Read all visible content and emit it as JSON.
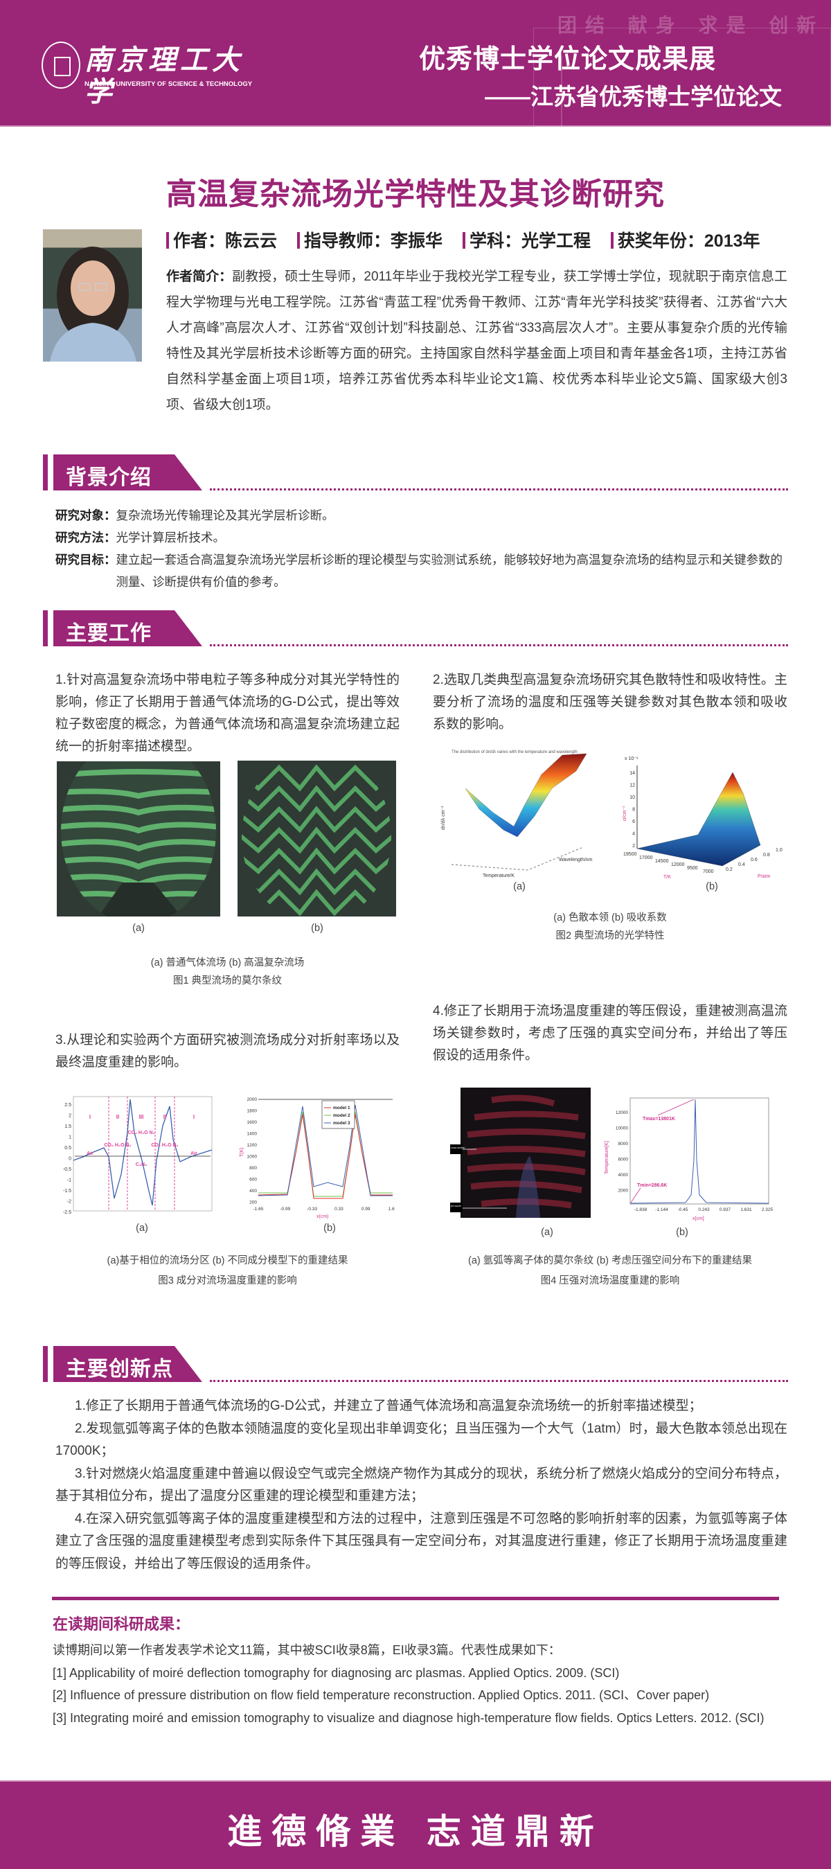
{
  "header": {
    "university_cn": "南京理工大学",
    "university_en": "NANJING UNIVERSITY OF SCIENCE & TECHNOLOGY",
    "motto_watermark": "团结 献身 求是 创新",
    "title": "优秀博士学位论文成果展",
    "subtitle": "——江苏省优秀博士学位论文"
  },
  "thesis_title": "高温复杂流场光学特性及其诊断研究",
  "author": {
    "author": "作者：陈云云",
    "advisor": "指导教师：李振华",
    "discipline": "学科：光学工程",
    "award_year": "获奖年份：2013年",
    "bio_label": "作者简介：",
    "bio": "副教授，硕士生导师，2011年毕业于我校光学工程专业，获工学博士学位，现就职于南京信息工程大学物理与光电工程学院。江苏省“青蓝工程”优秀骨干教师、江苏“青年光学科技奖”获得者、江苏省“六大人才高峰”高层次人才、江苏省“双创计划”科技副总、江苏省“333高层次人才”。主要从事复杂介质的光传输特性及其光学层析技术诊断等方面的研究。主持国家自然科学基金面上项目和青年基金各1项，主持江苏省自然科学基金面上项目1项，培养江苏省优秀本科毕业论文1篇、校优秀本科毕业论文5篇、国家级大创3项、省级大创1项。"
  },
  "background": {
    "heading": "背景介绍",
    "rows": [
      {
        "label": "研究对象：",
        "text": "复杂流场光传输理论及其光学层析诊断。"
      },
      {
        "label": "研究方法：",
        "text": "光学计算层析技术。"
      },
      {
        "label": "研究目标：",
        "text": "建立起一套适合高温复杂流场光学层析诊断的理论模型与实验测试系统，能够较好地为高温复杂流场的结构显示和关键参数的测量、诊断提供有价值的参考。"
      }
    ]
  },
  "main_work": {
    "heading": "主要工作",
    "items": [
      {
        "text": "1.针对高温复杂流场中带电粒子等多种成分对其光学特性的影响，修正了长期用于普通气体流场的G-D公式，提出等效粒子数密度的概念，为普通气体流场和高温复杂流场建立起统一的折射率描述模型。",
        "sub_a": "(a)",
        "sub_b": "(b)",
        "caption": "(a) 普通气体流场  (b) 高温复杂流场",
        "figure": "图1 典型流场的莫尔条纹"
      },
      {
        "text": "2.选取几类典型高温复杂流场研究其色散特性和吸收特性。主要分析了流场的温度和压强等关键参数对其色散本领和吸收系数的影响。",
        "sub_a": "(a)",
        "sub_b": "(b)",
        "caption": "(a) 色散本领  (b) 吸收系数",
        "figure": "图2 典型流场的光学特性",
        "plot_a_title": "The distribution of dn/dλ varies with the temperature and wavelength",
        "plot_a_xlabel": "Temperature/K",
        "plot_a_ylabel": "dn/dλ cm⁻¹",
        "plot_a_zlabel": "Wavelength/nm",
        "plot_b_xlabel": "T/K",
        "plot_b_ylabel": "α/cm⁻¹",
        "plot_b_zlabel": "P/atm",
        "plot_b_scale": "x 10⁻⁶",
        "plot_b_yticks": [
          "2",
          "4",
          "6",
          "8",
          "10",
          "12",
          "14"
        ],
        "plot_b_xticks": [
          "19500",
          "17000",
          "14500",
          "12000",
          "9500",
          "7000"
        ],
        "plot_b_pticks": [
          "0.2",
          "0.4",
          "0.6",
          "0.8",
          "1.0"
        ]
      },
      {
        "text": "3.从理论和实验两个方面研究被测流场成分对折射率场以及最终温度重建的影响。",
        "sub_a": "(a)",
        "sub_b": "(b)",
        "caption": "(a)基于相位的流场分区  (b) 不同成分模型下的重建结果",
        "figure": "图3 成分对流场温度重建的影响",
        "plot_a_yticks": [
          "2.5",
          "2",
          "1.5",
          "1",
          "0.5",
          "0",
          "-0.5",
          "-1",
          "-1.5",
          "-2",
          "-2.5"
        ],
        "plot_a_ylabel": "φ",
        "plot_a_regions": [
          "I",
          "II",
          "III",
          "II",
          "I"
        ],
        "plot_a_species": [
          "Air",
          "CO₂ H₂O N₂",
          "CO₂ H₂O N₂",
          "C₃H₈",
          "CO₂ H₂O N₂",
          "Air"
        ],
        "plot_b_yticks": [
          "2000",
          "1800",
          "1600",
          "1400",
          "1200",
          "1000",
          "800",
          "600",
          "400",
          "200"
        ],
        "plot_b_xticks": [
          "-1.65",
          "-0.99",
          "-0.33",
          "0.33",
          "0.99",
          "1.65"
        ],
        "plot_b_xlabel": "x(cm)",
        "plot_b_ylabel": "T(K)",
        "legend": [
          "model 1",
          "model 2",
          "model 3"
        ],
        "legend_colors": [
          "#e0302a",
          "#6cc24a",
          "#3a5fb0"
        ]
      },
      {
        "text": "4.修正了长期用于流场温度重建的等压假设，重建被测高温流场关键参数时，考虑了压强的真实空间分布，并给出了等压假设的适用条件。",
        "sub_a": "(a)",
        "sub_b": "(b)",
        "caption": "(a) 氩弧等离子体的莫尔条纹  (b) 考虑压强空间分布下的重建结果",
        "figure": "图4 压强对流场温度重建的影响",
        "plot_a_labels": [
          "cross section",
          "jet nozzle"
        ],
        "plot_b_yticks": [
          "12000",
          "10000",
          "8000",
          "6000",
          "4000",
          "2000"
        ],
        "plot_b_xticks": [
          "-1.838",
          "-1.144",
          "-0.45",
          "0.243",
          "0.937",
          "1.631",
          "2.325"
        ],
        "plot_b_xlabel": "x[cm]",
        "plot_b_ylabel": "Temperature[K]",
        "tmax": "Tmax=13801K",
        "tmin": "Tmin=286.6K"
      }
    ]
  },
  "innovations": {
    "heading": "主要创新点",
    "items": [
      "1.修正了长期用于普通气体流场的G-D公式，并建立了普通气体流场和高温复杂流场统一的折射率描述模型；",
      "2.发现氩弧等离子体的色散本领随温度的变化呈现出非单调变化；且当压强为一个大气（1atm）时，最大色散本领总出现在17000K；",
      "3.针对燃烧火焰温度重建中普遍以假设空气或完全燃烧产物作为其成分的现状，系统分析了燃烧火焰成分的空间分布特点，基于其相位分布，提出了温度分区重建的理论模型和重建方法；",
      "4.在深入研究氩弧等离子体的温度重建模型和方法的过程中，注意到压强是不可忽略的影响折射率的因素，为氩弧等离子体建立了含压强的温度重建模型考虑到实际条件下其压强具有一定空间分布，对其温度进行重建，修正了长期用于流场温度重建的等压假设，并给出了等压假设的适用条件。"
    ]
  },
  "research": {
    "heading": "在读期间科研成果：",
    "summary": "读博期间以第一作者发表学术论文11篇，其中被SCI收录8篇，EI收录3篇。代表性成果如下：",
    "papers": [
      "[1] Applicability of moiré deflection tomography for diagnosing arc plasmas. Applied Optics. 2009. (SCI)",
      "[2] Influence of pressure distribution on flow field temperature reconstruction. Applied Optics. 2011. (SCI、Cover paper)",
      "[3] Integrating moiré and emission tomography to visualize and diagnose high-temperature flow fields. Optics Letters. 2012. (SCI)"
    ]
  },
  "footer": {
    "motto": "進德脩業 志道鼎新"
  },
  "colors": {
    "brand_purple": "#9b2577",
    "text": "#3a3a3a"
  }
}
